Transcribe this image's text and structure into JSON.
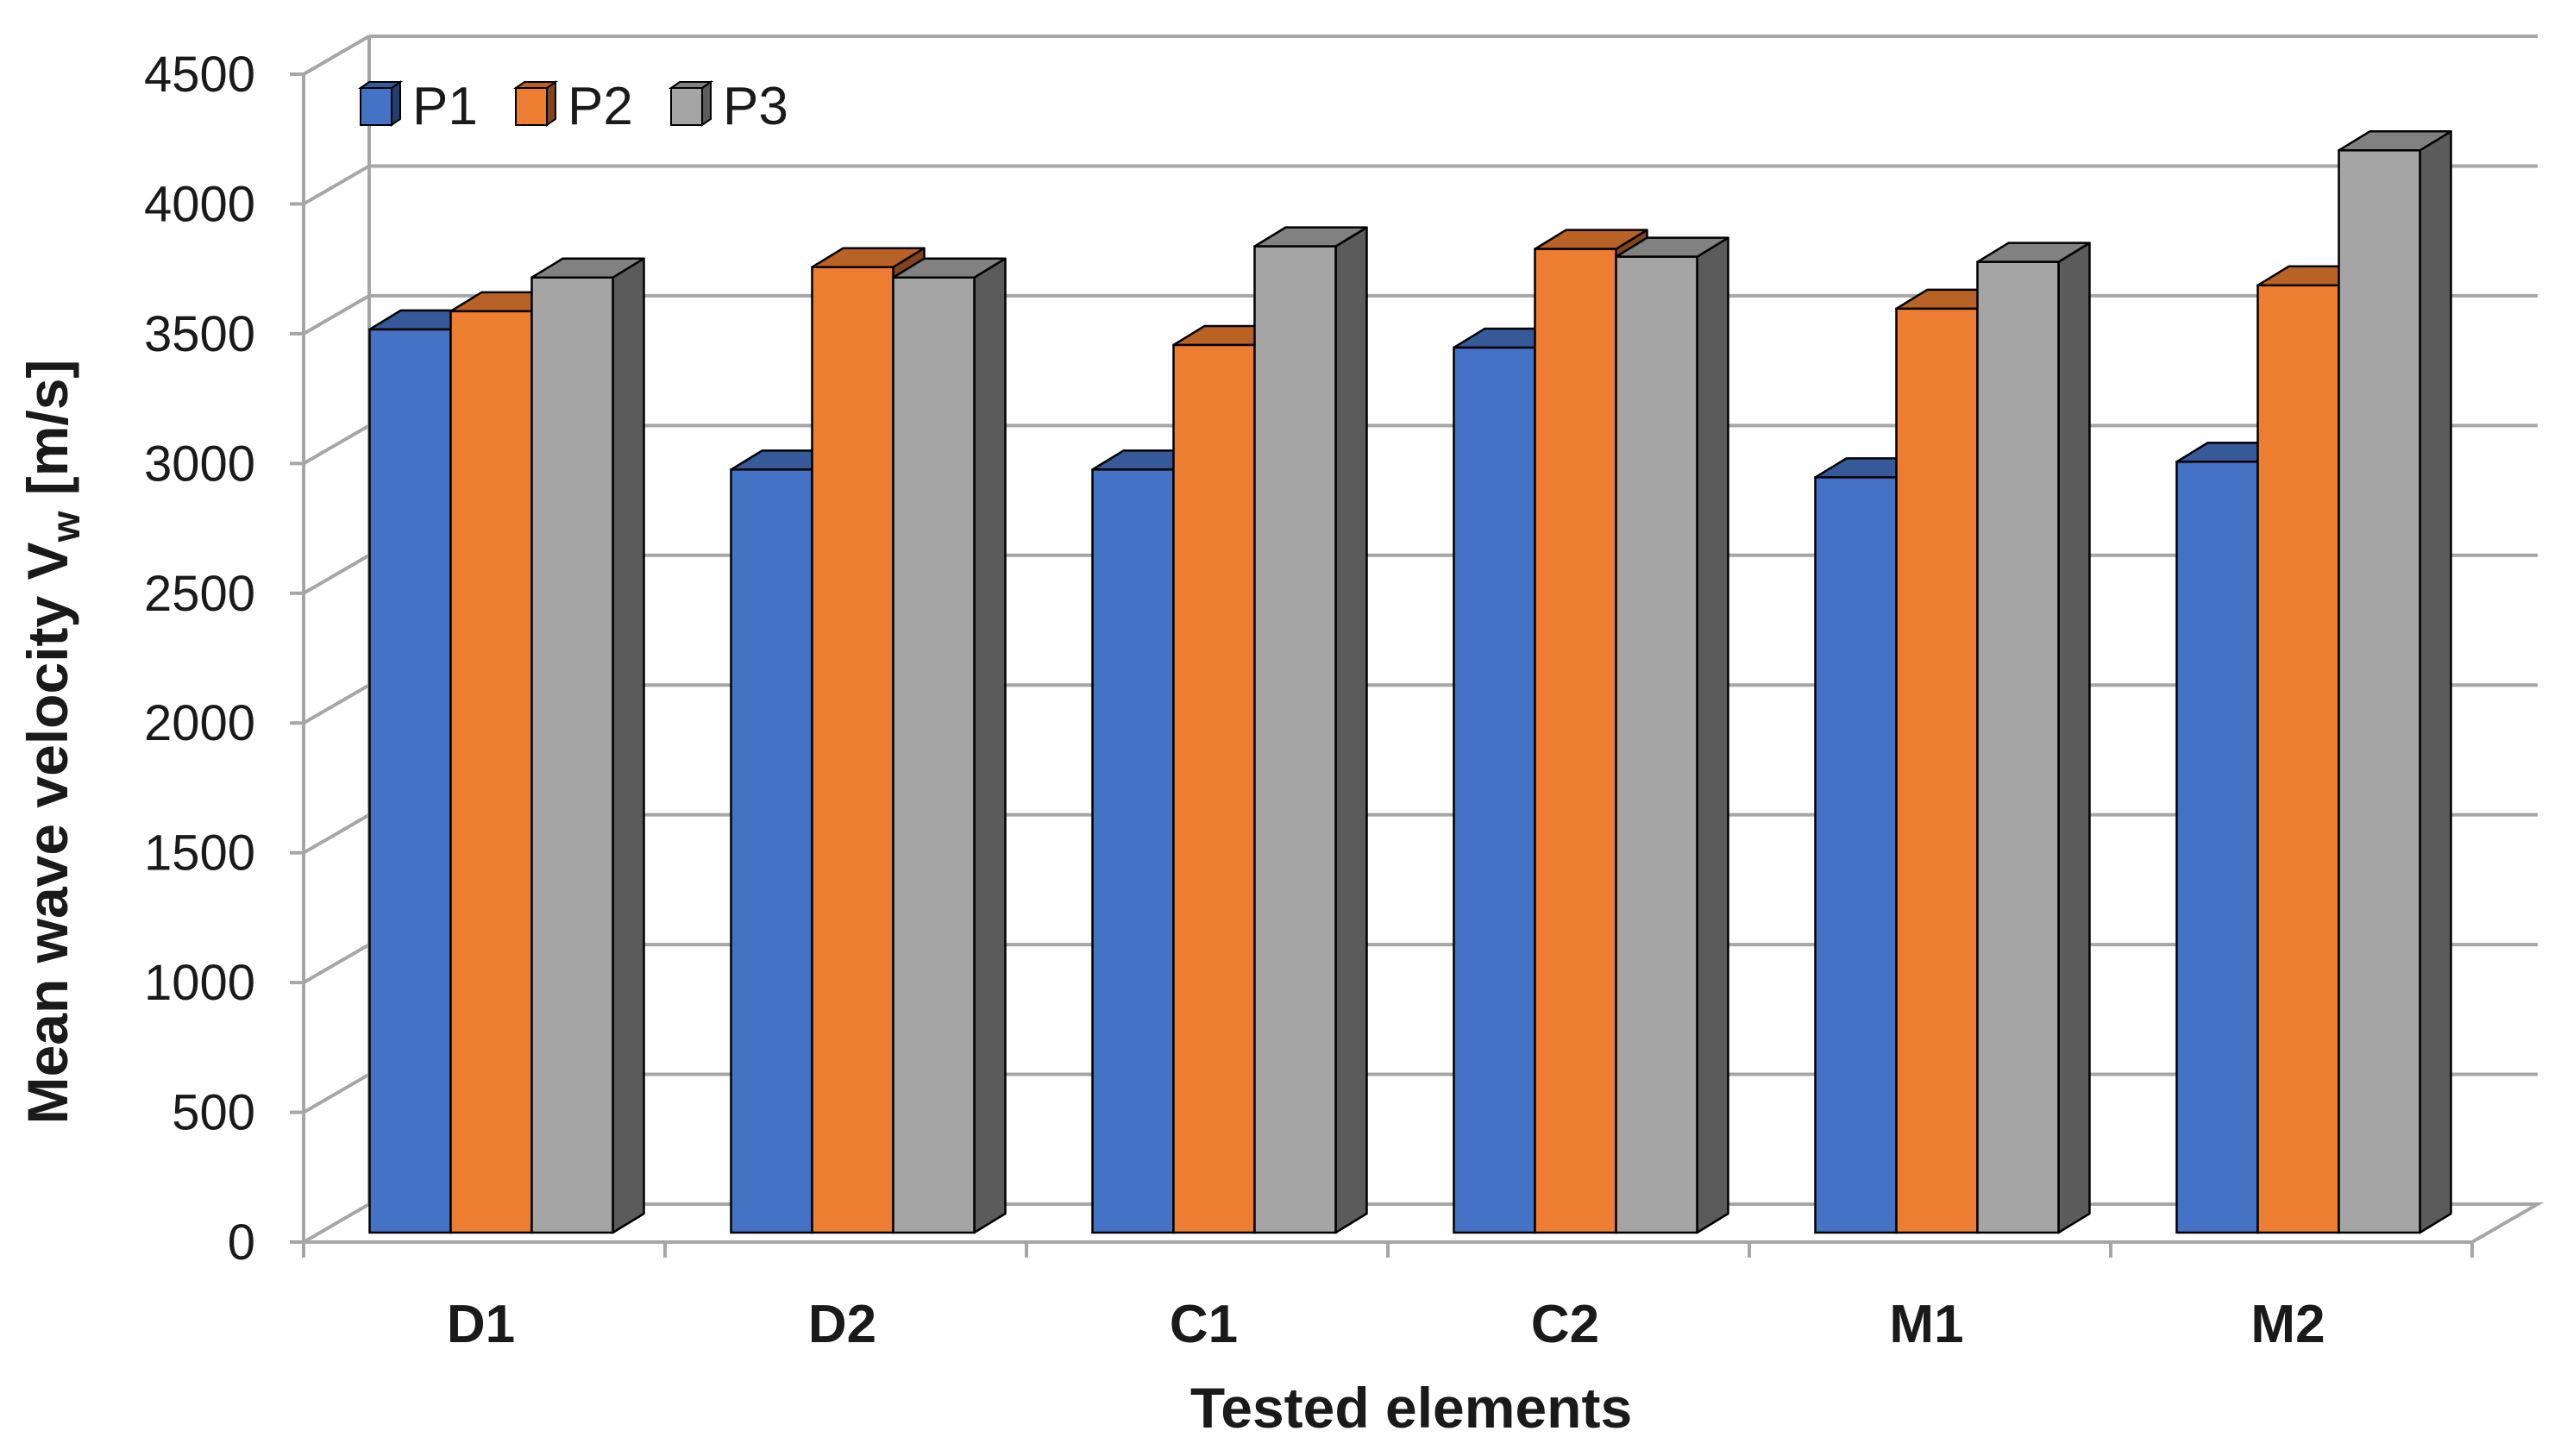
{
  "chart_data": {
    "type": "bar",
    "title": "",
    "xlabel": "Tested elements",
    "ylabel_main": "Mean wave velocity V",
    "ylabel_sub": "w",
    "ylabel_unit": " [m/s]",
    "ylim": [
      0,
      4500
    ],
    "yticks": [
      0,
      500,
      1000,
      1500,
      2000,
      2500,
      3000,
      3500,
      4000,
      4500
    ],
    "grid": true,
    "legend_position": "top-left",
    "categories": [
      "D1",
      "D2",
      "C1",
      "C2",
      "M1",
      "M2"
    ],
    "series": [
      {
        "name": "P1",
        "color": "#4472C4",
        "values": [
          3480,
          2940,
          2940,
          3410,
          2910,
          2970
        ]
      },
      {
        "name": "P2",
        "color": "#ED7D31",
        "values": [
          3550,
          3720,
          3420,
          3790,
          3560,
          3650
        ]
      },
      {
        "name": "P3",
        "color": "#A5A5A5",
        "values": [
          3680,
          3680,
          3800,
          3760,
          3740,
          4170
        ]
      }
    ]
  }
}
